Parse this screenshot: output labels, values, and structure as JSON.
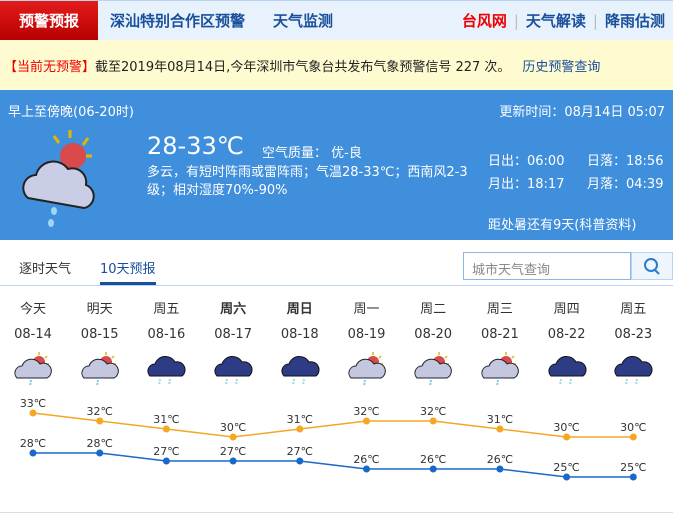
{
  "nav": {
    "brand": "预警预报",
    "links": [
      "深汕特别合作区预警",
      "天气监测"
    ],
    "right": [
      "台风网",
      "天气解读",
      "降雨估测"
    ],
    "sep": "|"
  },
  "alert": {
    "status": "【当前无预警】",
    "text": "截至2019年08月14日,今年深圳市气象台共发布气象预警信号 227 次。",
    "history": "历史预警查询"
  },
  "now": {
    "period": "早上至傍晚(06-20时)",
    "updated": "更新时间：08月14日 05:07",
    "temp": "28-33℃",
    "aqi": "空气质量： 优-良",
    "desc": "多云，有短时阵雨或雷阵雨；气温28-33℃；西南风2-3级；相对湿度70%-90%",
    "sunrise": "日出：06:00",
    "sunset": "日落：18:56",
    "moonrise": "月出：18:17",
    "moonset": "月落：04:39",
    "note": "距处暑还有9天(科普资料)",
    "icon": "partly-cloudy-shower-icon"
  },
  "tabs": [
    "逐时天气",
    "10天预报"
  ],
  "search": {
    "placeholder": "城市天气查询"
  },
  "days": [
    {
      "name": "今天",
      "date": "08-14",
      "icon": "partly-cloudy-rain"
    },
    {
      "name": "明天",
      "date": "08-15",
      "icon": "partly-cloudy-rain"
    },
    {
      "name": "周五",
      "date": "08-16",
      "icon": "thunder-rain"
    },
    {
      "name": "周六",
      "date": "08-17",
      "icon": "thunder-rain"
    },
    {
      "name": "周日",
      "date": "08-18",
      "icon": "thunder-rain"
    },
    {
      "name": "周一",
      "date": "08-19",
      "icon": "partly-cloudy-rain"
    },
    {
      "name": "周二",
      "date": "08-20",
      "icon": "partly-cloudy-rain"
    },
    {
      "name": "周三",
      "date": "08-21",
      "icon": "partly-cloudy-rain"
    },
    {
      "name": "周四",
      "date": "08-22",
      "icon": "thunder-rain"
    },
    {
      "name": "周五",
      "date": "08-23",
      "icon": "thunder-rain"
    }
  ],
  "chart_data": {
    "type": "line",
    "categories": [
      "08-14",
      "08-15",
      "08-16",
      "08-17",
      "08-18",
      "08-19",
      "08-20",
      "08-21",
      "08-22",
      "08-23"
    ],
    "series": [
      {
        "values": [
          33,
          32,
          31,
          30,
          31,
          32,
          32,
          31,
          30,
          30
        ],
        "color": "#f5a623"
      },
      {
        "values": [
          28,
          28,
          27,
          27,
          27,
          26,
          26,
          26,
          25,
          25
        ],
        "color": "#1a68c8"
      }
    ],
    "unit": "℃"
  }
}
